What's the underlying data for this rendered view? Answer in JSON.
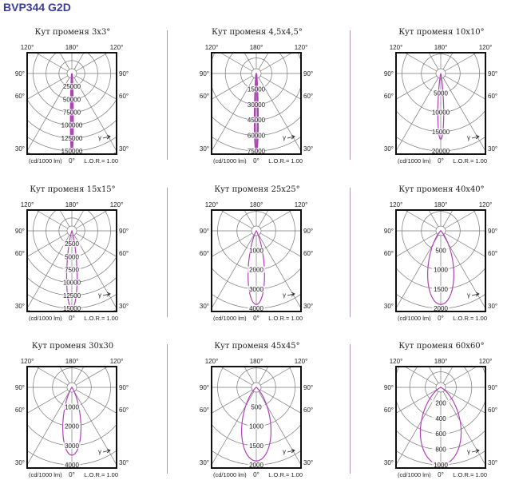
{
  "header": {
    "title": "BVP344 G2D"
  },
  "common": {
    "top_left": "120°",
    "top_mid": "180°",
    "top_right": "120°",
    "side_90": "90°",
    "side_60": "60°",
    "side_30": "30°",
    "unit": "(cd/1000 lm)",
    "bottom_mid": "0°",
    "lor": "L.O.R.= 1.00",
    "gamma": "γ"
  },
  "colors": {
    "curve": "#b03fb8",
    "grid": "#777777",
    "frame": "#111111"
  },
  "chart_data": [
    {
      "type": "polar",
      "title": "Кут променя 3x3°",
      "beam_angle": 3,
      "rings": [
        "25000",
        "50000",
        "75000",
        "100000",
        "125000",
        "150000"
      ],
      "ring_values": [
        25000,
        50000,
        75000,
        100000,
        125000,
        150000
      ],
      "peak": 150000
    },
    {
      "type": "polar",
      "title": "Кут променя 4,5x4,5°",
      "beam_angle": 4.5,
      "rings": [
        "15000",
        "30000",
        "45000",
        "60000",
        "75000"
      ],
      "ring_values": [
        15000,
        30000,
        45000,
        60000,
        75000
      ],
      "peak": 75000
    },
    {
      "type": "polar",
      "title": "Кут променя 10x10°",
      "beam_angle": 10,
      "rings": [
        "5000",
        "10000",
        "15000",
        "20000"
      ],
      "ring_values": [
        5000,
        10000,
        15000,
        20000
      ],
      "peak": 17000
    },
    {
      "type": "polar",
      "title": "Кут променя 15x15°",
      "beam_angle": 15,
      "rings": [
        "2500",
        "5000",
        "7500",
        "10000",
        "12500",
        "15000"
      ],
      "ring_values": [
        2500,
        5000,
        7500,
        10000,
        12500,
        15000
      ],
      "peak": 15000
    },
    {
      "type": "polar",
      "title": "Кут променя 25x25°",
      "beam_angle": 25,
      "rings": [
        "1000",
        "2000",
        "3000",
        "4000"
      ],
      "ring_values": [
        1000,
        2000,
        3000,
        4000
      ],
      "peak": 3800
    },
    {
      "type": "polar",
      "title": "Кут променя 40x40°",
      "beam_angle": 40,
      "rings": [
        "500",
        "1000",
        "1500",
        "2000"
      ],
      "ring_values": [
        500,
        1000,
        1500,
        2000
      ],
      "peak": 1900
    },
    {
      "type": "polar",
      "title": "Кут променя 30x30",
      "beam_angle": 30,
      "rings": [
        "1000",
        "2000",
        "3000",
        "4000"
      ],
      "ring_values": [
        1000,
        2000,
        3000,
        4000
      ],
      "peak": 3500
    },
    {
      "type": "polar",
      "title": "Кут променя 45x45°",
      "beam_angle": 45,
      "rings": [
        "500",
        "1000",
        "1500",
        "2000"
      ],
      "ring_values": [
        500,
        1000,
        1500,
        2000
      ],
      "peak": 1900
    },
    {
      "type": "polar",
      "title": "Кут променя 60x60°",
      "beam_angle": 60,
      "rings": [
        "200",
        "400",
        "600",
        "800",
        "1000"
      ],
      "ring_values": [
        200,
        400,
        600,
        800,
        1000
      ],
      "peak": 1000
    }
  ]
}
